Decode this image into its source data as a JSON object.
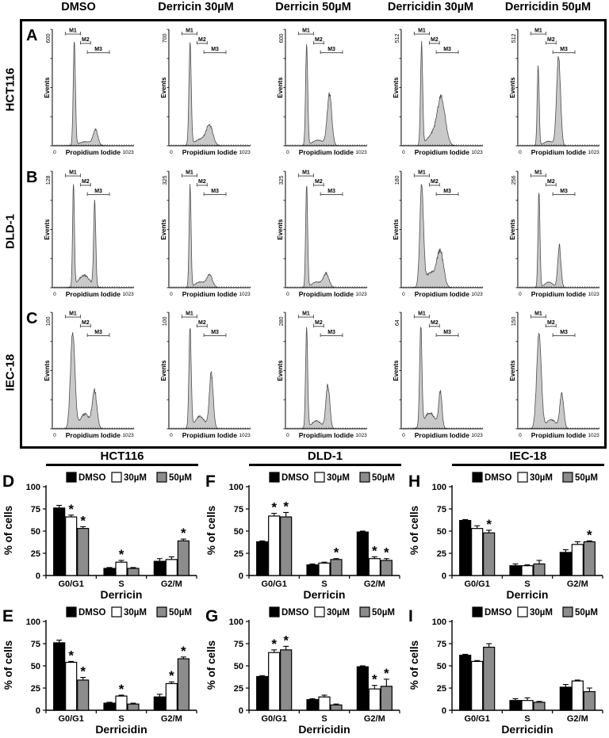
{
  "page": {
    "treatment_headers": [
      "DMSO",
      "Derricin 30µM",
      "Derricin 50µM",
      "Derricidin 30µM",
      "Derricidin 50µM"
    ],
    "cell_line_labels": [
      "HCT116",
      "DLD-1",
      "IEC-18"
    ],
    "group_headers": [
      "HCT116",
      "DLD-1",
      "IEC-18"
    ]
  },
  "chart_data": {
    "flow_histograms": {
      "type": "area",
      "xlabel": "Propidium Iodide",
      "ylabel": "Events",
      "x_min_label": "0",
      "x_max_label": "1023",
      "markers": [
        "M1",
        "M2",
        "M3"
      ],
      "marker_layout": [
        {
          "x1": 0.16,
          "x2": 0.345,
          "y": 0.04
        },
        {
          "x1": 0.345,
          "x2": 0.47,
          "y": 0.12
        },
        {
          "x1": 0.43,
          "x2": 0.7,
          "y": 0.2
        }
      ],
      "fill_color": "#c9c9c9",
      "stroke_color": "#4d4d4d",
      "rows": [
        {
          "panel_letter": "A",
          "cell_line": "HCT116",
          "plots": [
            {
              "treatment": "DMSO",
              "y_axis_max": "600",
              "peaks": [
                {
                  "x": 0.27,
                  "h": 0.92,
                  "w": 0.013
                },
                {
                  "x": 0.53,
                  "h": 0.13,
                  "w": 0.028
                },
                {
                  "x": 0.41,
                  "h": 0.035,
                  "w": 0.09
                }
              ]
            },
            {
              "treatment": "Derricin 30µM",
              "y_axis_max": "700",
              "peaks": [
                {
                  "x": 0.26,
                  "h": 0.89,
                  "w": 0.014
                },
                {
                  "x": 0.5,
                  "h": 0.16,
                  "w": 0.04
                },
                {
                  "x": 0.4,
                  "h": 0.06,
                  "w": 0.08
                }
              ]
            },
            {
              "treatment": "Derricin 50µM",
              "y_axis_max": "600",
              "peaks": [
                {
                  "x": 0.26,
                  "h": 0.89,
                  "w": 0.013
                },
                {
                  "x": 0.54,
                  "h": 0.45,
                  "w": 0.028
                },
                {
                  "x": 0.4,
                  "h": 0.05,
                  "w": 0.07
                }
              ]
            },
            {
              "treatment": "Derricidin 30µM",
              "y_axis_max": "512",
              "peaks": [
                {
                  "x": 0.25,
                  "h": 0.9,
                  "w": 0.013
                },
                {
                  "x": 0.49,
                  "h": 0.42,
                  "w": 0.05
                },
                {
                  "x": 0.37,
                  "h": 0.09,
                  "w": 0.06
                }
              ]
            },
            {
              "treatment": "Derricidin 50µM",
              "y_axis_max": "512",
              "peaks": [
                {
                  "x": 0.25,
                  "h": 0.7,
                  "w": 0.012
                },
                {
                  "x": 0.5,
                  "h": 0.78,
                  "w": 0.024
                },
                {
                  "x": 0.38,
                  "h": 0.04,
                  "w": 0.06
                }
              ]
            }
          ]
        },
        {
          "panel_letter": "B",
          "cell_line": "DLD-1",
          "plots": [
            {
              "treatment": "DMSO",
              "y_axis_max": "128",
              "peaks": [
                {
                  "x": 0.26,
                  "h": 0.92,
                  "w": 0.011
                },
                {
                  "x": 0.52,
                  "h": 0.74,
                  "w": 0.013
                },
                {
                  "x": 0.39,
                  "h": 0.11,
                  "w": 0.07
                }
              ]
            },
            {
              "treatment": "Derricin 30µM",
              "y_axis_max": "325",
              "peaks": [
                {
                  "x": 0.26,
                  "h": 0.9,
                  "w": 0.012
                },
                {
                  "x": 0.5,
                  "h": 0.11,
                  "w": 0.035
                },
                {
                  "x": 0.38,
                  "h": 0.05,
                  "w": 0.06
                }
              ]
            },
            {
              "treatment": "Derricin 50µM",
              "y_axis_max": "325",
              "peaks": [
                {
                  "x": 0.26,
                  "h": 0.9,
                  "w": 0.012
                },
                {
                  "x": 0.5,
                  "h": 0.12,
                  "w": 0.035
                },
                {
                  "x": 0.38,
                  "h": 0.05,
                  "w": 0.06
                }
              ]
            },
            {
              "treatment": "Derricidin 30µM",
              "y_axis_max": "180",
              "peaks": [
                {
                  "x": 0.25,
                  "h": 0.88,
                  "w": 0.022
                },
                {
                  "x": 0.48,
                  "h": 0.3,
                  "w": 0.04
                },
                {
                  "x": 0.36,
                  "h": 0.13,
                  "w": 0.07
                }
              ]
            },
            {
              "treatment": "Derricidin 50µM",
              "y_axis_max": "256",
              "peaks": [
                {
                  "x": 0.26,
                  "h": 0.86,
                  "w": 0.012
                },
                {
                  "x": 0.51,
                  "h": 0.36,
                  "w": 0.02
                },
                {
                  "x": 0.38,
                  "h": 0.05,
                  "w": 0.05
                }
              ]
            }
          ]
        },
        {
          "panel_letter": "C",
          "cell_line": "IEC-18",
          "plots": [
            {
              "treatment": "DMSO",
              "y_axis_max": "100",
              "peaks": [
                {
                  "x": 0.25,
                  "h": 0.84,
                  "w": 0.027
                },
                {
                  "x": 0.52,
                  "h": 0.32,
                  "w": 0.028
                },
                {
                  "x": 0.4,
                  "h": 0.13,
                  "w": 0.06
                }
              ]
            },
            {
              "treatment": "Derricin 30µM",
              "y_axis_max": "100",
              "peaks": [
                {
                  "x": 0.26,
                  "h": 0.88,
                  "w": 0.014
                },
                {
                  "x": 0.52,
                  "h": 0.48,
                  "w": 0.024
                },
                {
                  "x": 0.38,
                  "h": 0.11,
                  "w": 0.06
                }
              ]
            },
            {
              "treatment": "Derricin 50µM",
              "y_axis_max": "280",
              "peaks": [
                {
                  "x": 0.26,
                  "h": 0.88,
                  "w": 0.013
                },
                {
                  "x": 0.52,
                  "h": 0.38,
                  "w": 0.024
                },
                {
                  "x": 0.38,
                  "h": 0.07,
                  "w": 0.06
                }
              ]
            },
            {
              "treatment": "Derricidin 30µM",
              "y_axis_max": "64",
              "peaks": [
                {
                  "x": 0.24,
                  "h": 0.88,
                  "w": 0.014
                },
                {
                  "x": 0.48,
                  "h": 0.3,
                  "w": 0.02
                },
                {
                  "x": 0.35,
                  "h": 0.14,
                  "w": 0.07
                }
              ]
            },
            {
              "treatment": "Derricidin 50µM",
              "y_axis_max": "150",
              "peaks": [
                {
                  "x": 0.26,
                  "h": 0.85,
                  "w": 0.028
                },
                {
                  "x": 0.54,
                  "h": 0.3,
                  "w": 0.024
                },
                {
                  "x": 0.41,
                  "h": 0.08,
                  "w": 0.06
                }
              ]
            }
          ]
        }
      ]
    },
    "bar_charts": {
      "type": "bar",
      "ylabel": "% of cells",
      "yticks": [
        0,
        25,
        50,
        75,
        100
      ],
      "ylim": [
        0,
        100
      ],
      "categories": [
        "G0/G1",
        "S",
        "G2/M"
      ],
      "legend": [
        "DMSO",
        "30µM",
        "50µM"
      ],
      "series_colors": [
        "#000000",
        "#ffffff",
        "#8c8c8c"
      ],
      "panels": [
        {
          "panel_letter": "D",
          "group": "HCT116",
          "xlabel": "Derricin",
          "series": [
            {
              "name": "DMSO",
              "values": [
                76,
                8,
                16
              ],
              "errors": [
                3,
                1,
                3
              ],
              "sig": [
                0,
                0,
                0
              ]
            },
            {
              "name": "30µM",
              "values": [
                66,
                15,
                18
              ],
              "errors": [
                2,
                2,
                3
              ],
              "sig": [
                1,
                1,
                0
              ]
            },
            {
              "name": "50µM",
              "values": [
                53,
                8,
                39
              ],
              "errors": [
                2,
                1,
                2
              ],
              "sig": [
                1,
                0,
                1
              ]
            }
          ]
        },
        {
          "panel_letter": "E",
          "group": "HCT116",
          "xlabel": "Derricidin",
          "series": [
            {
              "name": "DMSO",
              "values": [
                76,
                8,
                15
              ],
              "errors": [
                3,
                1,
                3
              ],
              "sig": [
                0,
                0,
                0
              ]
            },
            {
              "name": "30µM",
              "values": [
                54,
                16,
                30
              ],
              "errors": [
                1,
                1,
                2
              ],
              "sig": [
                1,
                1,
                1
              ]
            },
            {
              "name": "50µM",
              "values": [
                34,
                7,
                58
              ],
              "errors": [
                3,
                1,
                2
              ],
              "sig": [
                1,
                0,
                1
              ]
            }
          ]
        },
        {
          "panel_letter": "F",
          "group": "DLD-1",
          "xlabel": "Derricin",
          "series": [
            {
              "name": "DMSO",
              "values": [
                38,
                12,
                49
              ],
              "errors": [
                1,
                1,
                1
              ],
              "sig": [
                0,
                0,
                0
              ]
            },
            {
              "name": "30µM",
              "values": [
                67,
                14,
                19
              ],
              "errors": [
                3,
                1,
                2
              ],
              "sig": [
                1,
                0,
                1
              ]
            },
            {
              "name": "50µM",
              "values": [
                66,
                18,
                17
              ],
              "errors": [
                5,
                1,
                2
              ],
              "sig": [
                1,
                1,
                1
              ]
            }
          ]
        },
        {
          "panel_letter": "G",
          "group": "DLD-1",
          "xlabel": "Derricidin",
          "series": [
            {
              "name": "DMSO",
              "values": [
                38,
                12,
                49
              ],
              "errors": [
                1,
                1,
                1
              ],
              "sig": [
                0,
                0,
                0
              ]
            },
            {
              "name": "30µM",
              "values": [
                65,
                15,
                24
              ],
              "errors": [
                3,
                2,
                4
              ],
              "sig": [
                1,
                0,
                1
              ]
            },
            {
              "name": "50µM",
              "values": [
                68,
                6,
                27
              ],
              "errors": [
                4,
                1,
                8
              ],
              "sig": [
                1,
                0,
                1
              ]
            }
          ]
        },
        {
          "panel_letter": "H",
          "group": "IEC-18",
          "xlabel": "Derricin",
          "series": [
            {
              "name": "DMSO",
              "values": [
                62,
                11,
                26
              ],
              "errors": [
                1,
                2,
                3
              ],
              "sig": [
                0,
                0,
                0
              ]
            },
            {
              "name": "30µM",
              "values": [
                53,
                11,
                35
              ],
              "errors": [
                3,
                1,
                3
              ],
              "sig": [
                0,
                0,
                0
              ]
            },
            {
              "name": "50µM",
              "values": [
                48,
                13,
                38
              ],
              "errors": [
                3,
                4,
                1
              ],
              "sig": [
                1,
                0,
                1
              ]
            }
          ]
        },
        {
          "panel_letter": "I",
          "group": "IEC-18",
          "xlabel": "Derricidin",
          "series": [
            {
              "name": "DMSO",
              "values": [
                62,
                11,
                26
              ],
              "errors": [
                1,
                2,
                3
              ],
              "sig": [
                0,
                0,
                0
              ]
            },
            {
              "name": "30µM",
              "values": [
                55,
                11,
                33
              ],
              "errors": [
                1,
                3,
                1
              ],
              "sig": [
                0,
                0,
                0
              ]
            },
            {
              "name": "50µM",
              "values": [
                71,
                9,
                21
              ],
              "errors": [
                4,
                1,
                4
              ],
              "sig": [
                0,
                0,
                0
              ]
            }
          ]
        }
      ]
    }
  }
}
